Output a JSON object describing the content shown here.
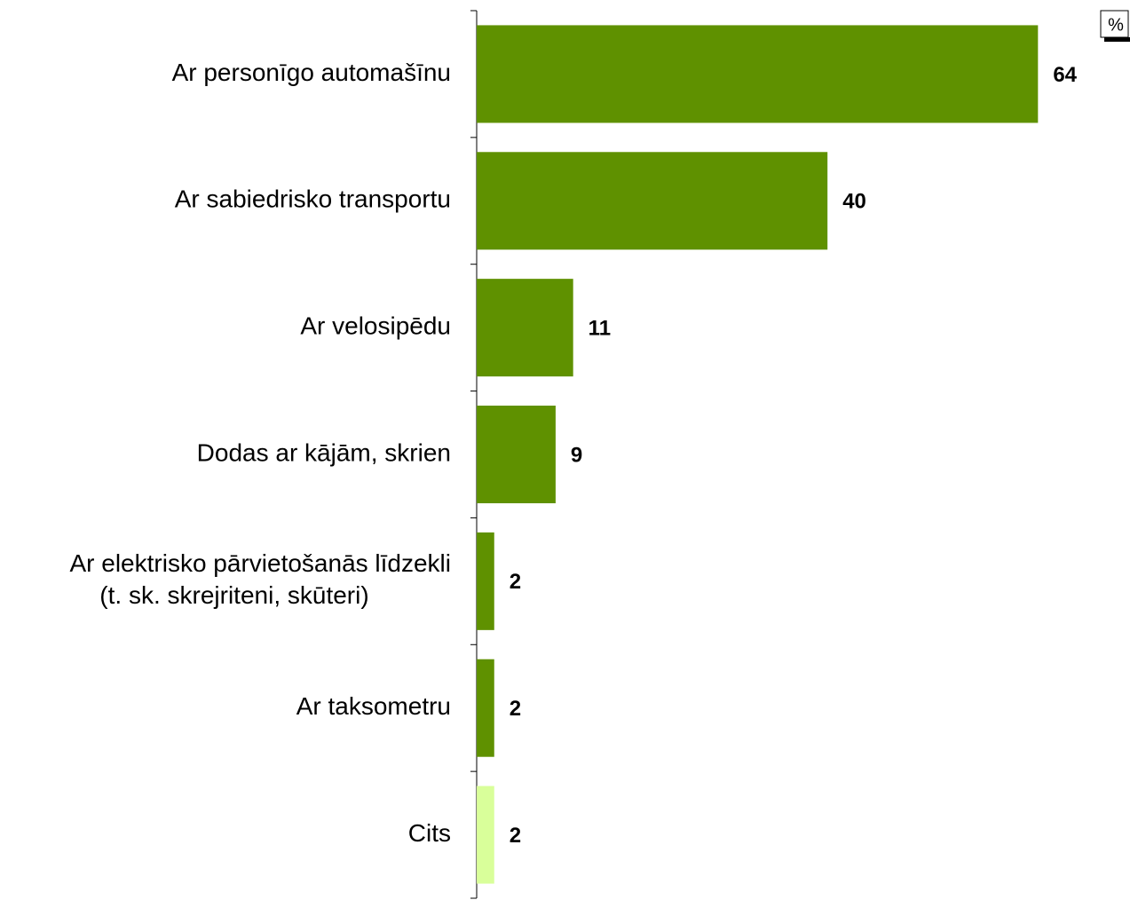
{
  "chart_data": {
    "type": "hbar",
    "unit": "%",
    "categories": [
      "Ar personīgo automašīnu",
      "Ar sabiedrisko transportu",
      "Ar velosipēdu",
      "Dodas ar kājām, skrien",
      "Ar elektrisko pārvietošanās līdzekli\n(t. sk. skrejriteni, skūteri)",
      "Ar taksometru",
      "Cits"
    ],
    "values": [
      64,
      40,
      11,
      9,
      2,
      2,
      2
    ],
    "colors": [
      "#5f9100",
      "#5f9100",
      "#5f9100",
      "#5f9100",
      "#5f9100",
      "#5f9100",
      "#d9ff9a"
    ]
  }
}
